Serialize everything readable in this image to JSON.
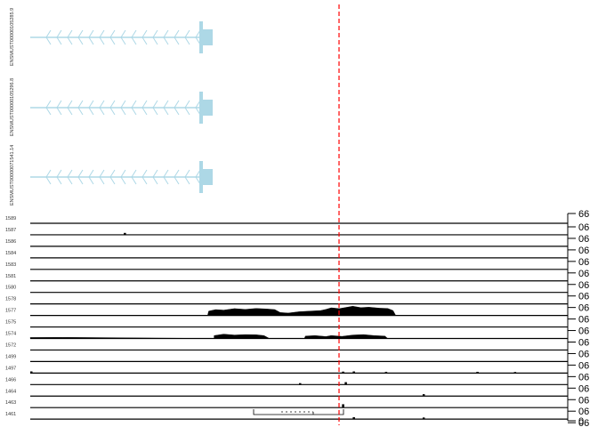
{
  "chart_data": {
    "type": "area",
    "title": "",
    "xlabel": "",
    "ylabel": "",
    "transcripts": [
      {
        "name": "ENSMUST00000105285.9"
      },
      {
        "name": "ENSMUST00000105296.8"
      },
      {
        "name": "ENSMUST00000071541.14"
      }
    ],
    "transcript_color": "#add8e6",
    "marker_color": "#ff0000",
    "track_color": "#000000",
    "y_axis": {
      "top_label": "66",
      "tick_label": "06",
      "bottom_label": "0"
    },
    "tracks": [
      {
        "name": "1589",
        "values": []
      },
      {
        "name": "1587",
        "values": [
          [
            0.174,
            0.15
          ]
        ]
      },
      {
        "name": "1586",
        "values": []
      },
      {
        "name": "1584",
        "values": []
      },
      {
        "name": "1583",
        "values": []
      },
      {
        "name": "1581",
        "values": []
      },
      {
        "name": "1580",
        "values": []
      },
      {
        "name": "1578",
        "values": []
      },
      {
        "name": "1577",
        "values": [
          [
            0.33,
            0
          ],
          [
            0.332,
            0.45
          ],
          [
            0.345,
            0.6
          ],
          [
            0.36,
            0.55
          ],
          [
            0.38,
            0.7
          ],
          [
            0.4,
            0.62
          ],
          [
            0.42,
            0.72
          ],
          [
            0.44,
            0.66
          ],
          [
            0.455,
            0.6
          ],
          [
            0.465,
            0.3
          ],
          [
            0.48,
            0.25
          ],
          [
            0.5,
            0.38
          ],
          [
            0.52,
            0.45
          ],
          [
            0.54,
            0.5
          ],
          [
            0.55,
            0.62
          ],
          [
            0.56,
            0.78
          ],
          [
            0.575,
            0.7
          ],
          [
            0.59,
            0.85
          ],
          [
            0.6,
            0.95
          ],
          [
            0.615,
            0.8
          ],
          [
            0.63,
            0.85
          ],
          [
            0.65,
            0.75
          ],
          [
            0.665,
            0.72
          ],
          [
            0.675,
            0.5
          ],
          [
            0.68,
            0
          ]
        ]
      },
      {
        "name": "1575",
        "values": []
      },
      {
        "name": "1574",
        "values": [
          [
            0.0,
            0.1
          ],
          [
            0.06,
            0.12
          ],
          [
            0.34,
            0
          ],
          [
            0.342,
            0.3
          ],
          [
            0.36,
            0.45
          ],
          [
            0.38,
            0.35
          ],
          [
            0.4,
            0.4
          ],
          [
            0.42,
            0.38
          ],
          [
            0.435,
            0.3
          ],
          [
            0.445,
            0
          ],
          [
            0.51,
            0
          ],
          [
            0.512,
            0.25
          ],
          [
            0.53,
            0.3
          ],
          [
            0.55,
            0.2
          ],
          [
            0.56,
            0.3
          ],
          [
            0.58,
            0.22
          ],
          [
            0.6,
            0.35
          ],
          [
            0.62,
            0.4
          ],
          [
            0.64,
            0.3
          ],
          [
            0.66,
            0.25
          ],
          [
            0.665,
            0
          ]
        ]
      },
      {
        "name": "1572",
        "values": []
      },
      {
        "name": "1499",
        "values": []
      },
      {
        "name": "1497",
        "values": [
          [
            0.0,
            0.12
          ],
          [
            0.58,
            0.1
          ],
          [
            0.6,
            0.12
          ],
          [
            0.66,
            0.08
          ],
          [
            0.83,
            0.08
          ],
          [
            0.9,
            0.06
          ]
        ]
      },
      {
        "name": "1466",
        "values": [
          [
            0.5,
            0.1
          ],
          [
            0.585,
            0.2
          ]
        ]
      },
      {
        "name": "1464",
        "values": [
          [
            0.73,
            0.15
          ]
        ]
      },
      {
        "name": "1463",
        "values": [
          [
            0.58,
            0.3
          ]
        ]
      },
      {
        "name": "1461",
        "values": [
          [
            0.6,
            0.15
          ],
          [
            0.73,
            0.12
          ]
        ]
      }
    ]
  }
}
